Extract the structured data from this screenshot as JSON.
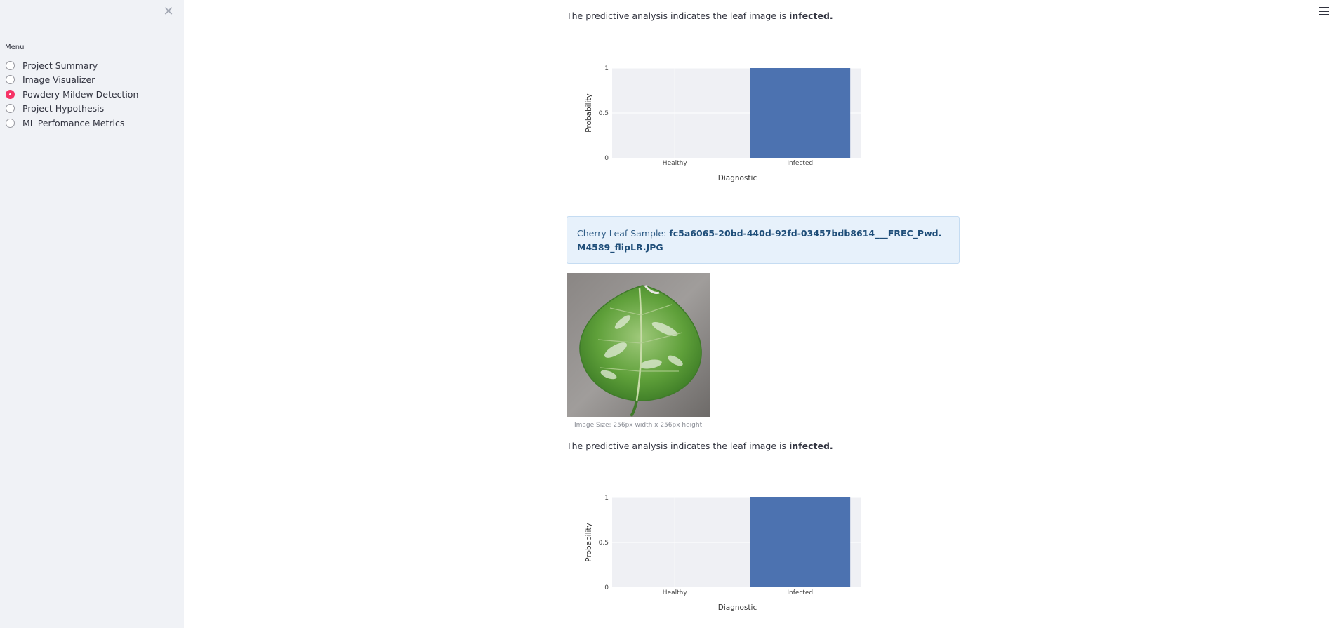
{
  "sidebar": {
    "menu_label": "Menu",
    "items": [
      {
        "label": "Project Summary",
        "selected": false
      },
      {
        "label": "Image Visualizer",
        "selected": false
      },
      {
        "label": "Powdery Mildew Detection",
        "selected": true
      },
      {
        "label": "Project Hypothesis",
        "selected": false
      },
      {
        "label": "ML Perfomance Metrics",
        "selected": false
      }
    ],
    "close_icon": "close-icon"
  },
  "header": {
    "menu_icon": "hamburger-menu-icon"
  },
  "results": [
    {
      "prediction_prefix": "The predictive analysis indicates the leaf image is ",
      "prediction_value": "infected."
    },
    {
      "sample_label": "Cherry Leaf Sample: ",
      "sample_filename": "fc5a6065-20bd-440d-92fd-03457bdb8614___FREC_Pwd.M4589_flipLR.JPG",
      "image_caption": "Image Size: 256px width x 256px height",
      "prediction_prefix": "The predictive analysis indicates the leaf image is ",
      "prediction_value": "infected."
    }
  ],
  "chart_data": [
    {
      "type": "bar",
      "categories": [
        "Healthy",
        "Infected"
      ],
      "values": [
        0,
        1
      ],
      "xlabel": "Diagnostic",
      "ylabel": "Probability",
      "ylim": [
        0,
        1
      ],
      "yticks": [
        "0",
        "0.5",
        "1"
      ],
      "bar_color": "#4c72b0",
      "plot_bg": "#eff0f4"
    },
    {
      "type": "bar",
      "categories": [
        "Healthy",
        "Infected"
      ],
      "values": [
        0,
        1
      ],
      "xlabel": "Diagnostic",
      "ylabel": "Probability",
      "ylim": [
        0,
        1
      ],
      "yticks": [
        "0",
        "0.5",
        "1"
      ],
      "bar_color": "#4c72b0",
      "plot_bg": "#eff0f4"
    }
  ],
  "colors": {
    "accent": "#f63366",
    "sidebar_bg": "#f0f2f6",
    "info_bg": "#e7f1fb"
  }
}
